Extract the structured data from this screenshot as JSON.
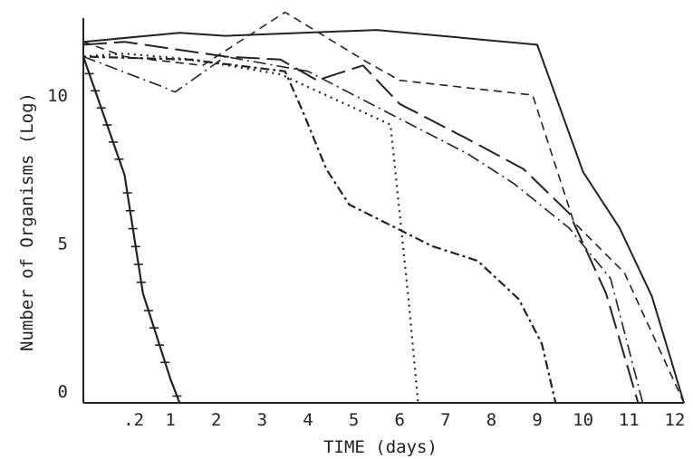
{
  "chart_data": {
    "type": "line",
    "title": "",
    "xlabel": "TIME (days)",
    "ylabel": "Number of Organisms (Log)",
    "x_ticks": [
      {
        "value": 0.2,
        "label": ".2"
      },
      {
        "value": 1,
        "label": "1"
      },
      {
        "value": 2,
        "label": "2"
      },
      {
        "value": 3,
        "label": "3"
      },
      {
        "value": 4,
        "label": "4"
      },
      {
        "value": 5,
        "label": "5"
      },
      {
        "value": 6,
        "label": "6"
      },
      {
        "value": 7,
        "label": "7"
      },
      {
        "value": 8,
        "label": "8"
      },
      {
        "value": 9,
        "label": "9"
      },
      {
        "value": 10,
        "label": "10"
      },
      {
        "value": 11,
        "label": "11"
      },
      {
        "value": 12,
        "label": "12"
      }
    ],
    "y_ticks": [
      {
        "value": 0,
        "label": "0"
      },
      {
        "value": 5,
        "label": "5"
      },
      {
        "value": 10,
        "label": "10"
      }
    ],
    "xlim": [
      -0.9,
      12.2
    ],
    "ylim": [
      -0.4,
      12.6
    ],
    "grid": false,
    "legend": "none",
    "series": [
      {
        "style": "solid",
        "points": [
          [
            -0.9,
            11.8
          ],
          [
            1.2,
            12.1
          ],
          [
            2.2,
            12.0
          ],
          [
            5.5,
            12.2
          ],
          [
            9.0,
            11.7
          ],
          [
            10.0,
            7.4
          ],
          [
            10.8,
            5.5
          ],
          [
            11.5,
            3.2
          ],
          [
            12.2,
            -0.4
          ]
        ]
      },
      {
        "style": "cross",
        "points": [
          [
            -0.9,
            11.3
          ],
          [
            0.0,
            7.3
          ],
          [
            0.4,
            3.3
          ],
          [
            1.0,
            0.4
          ],
          [
            1.2,
            -0.4
          ]
        ]
      },
      {
        "style": "short-dash",
        "points": [
          [
            -0.9,
            11.8
          ],
          [
            0.0,
            11.3
          ],
          [
            1.7,
            11.0
          ],
          [
            3.5,
            12.8
          ],
          [
            5.3,
            11.1
          ],
          [
            6.0,
            10.5
          ],
          [
            8.9,
            10.0
          ],
          [
            9.8,
            5.7
          ],
          [
            10.9,
            4.0
          ],
          [
            12.2,
            -0.4
          ]
        ]
      },
      {
        "style": "long-dash",
        "points": [
          [
            -0.9,
            11.7
          ],
          [
            0.0,
            11.8
          ],
          [
            2.2,
            11.3
          ],
          [
            3.4,
            11.2
          ],
          [
            4.2,
            10.5
          ],
          [
            5.2,
            11.0
          ],
          [
            6.0,
            9.7
          ],
          [
            7.5,
            8.5
          ],
          [
            8.7,
            7.5
          ],
          [
            9.7,
            6.0
          ],
          [
            10.5,
            3.3
          ],
          [
            11.2,
            -0.4
          ]
        ]
      },
      {
        "style": "dash-dot",
        "points": [
          [
            -0.9,
            11.3
          ],
          [
            0.8,
            10.3
          ],
          [
            1.1,
            10.1
          ],
          [
            2.2,
            11.3
          ],
          [
            4.0,
            10.8
          ],
          [
            5.0,
            10.0
          ],
          [
            7.5,
            8.0
          ],
          [
            8.5,
            7.0
          ],
          [
            9.7,
            5.5
          ],
          [
            10.6,
            3.8
          ],
          [
            11.3,
            -0.4
          ]
        ]
      },
      {
        "style": "dotted",
        "points": [
          [
            -0.9,
            11.3
          ],
          [
            0.0,
            11.4
          ],
          [
            1.5,
            11.2
          ],
          [
            3.4,
            10.7
          ],
          [
            5.8,
            9.0
          ],
          [
            6.2,
            3.0
          ],
          [
            6.4,
            -0.4
          ]
        ]
      },
      {
        "style": "dash-dot-long",
        "points": [
          [
            -0.9,
            11.3
          ],
          [
            1.4,
            11.2
          ],
          [
            3.5,
            10.8
          ],
          [
            3.9,
            9.4
          ],
          [
            4.4,
            7.5
          ],
          [
            4.9,
            6.3
          ],
          [
            5.8,
            5.6
          ],
          [
            6.7,
            4.9
          ],
          [
            7.7,
            4.4
          ],
          [
            8.6,
            3.1
          ],
          [
            9.1,
            1.6
          ],
          [
            9.4,
            -0.4
          ]
        ]
      }
    ]
  }
}
